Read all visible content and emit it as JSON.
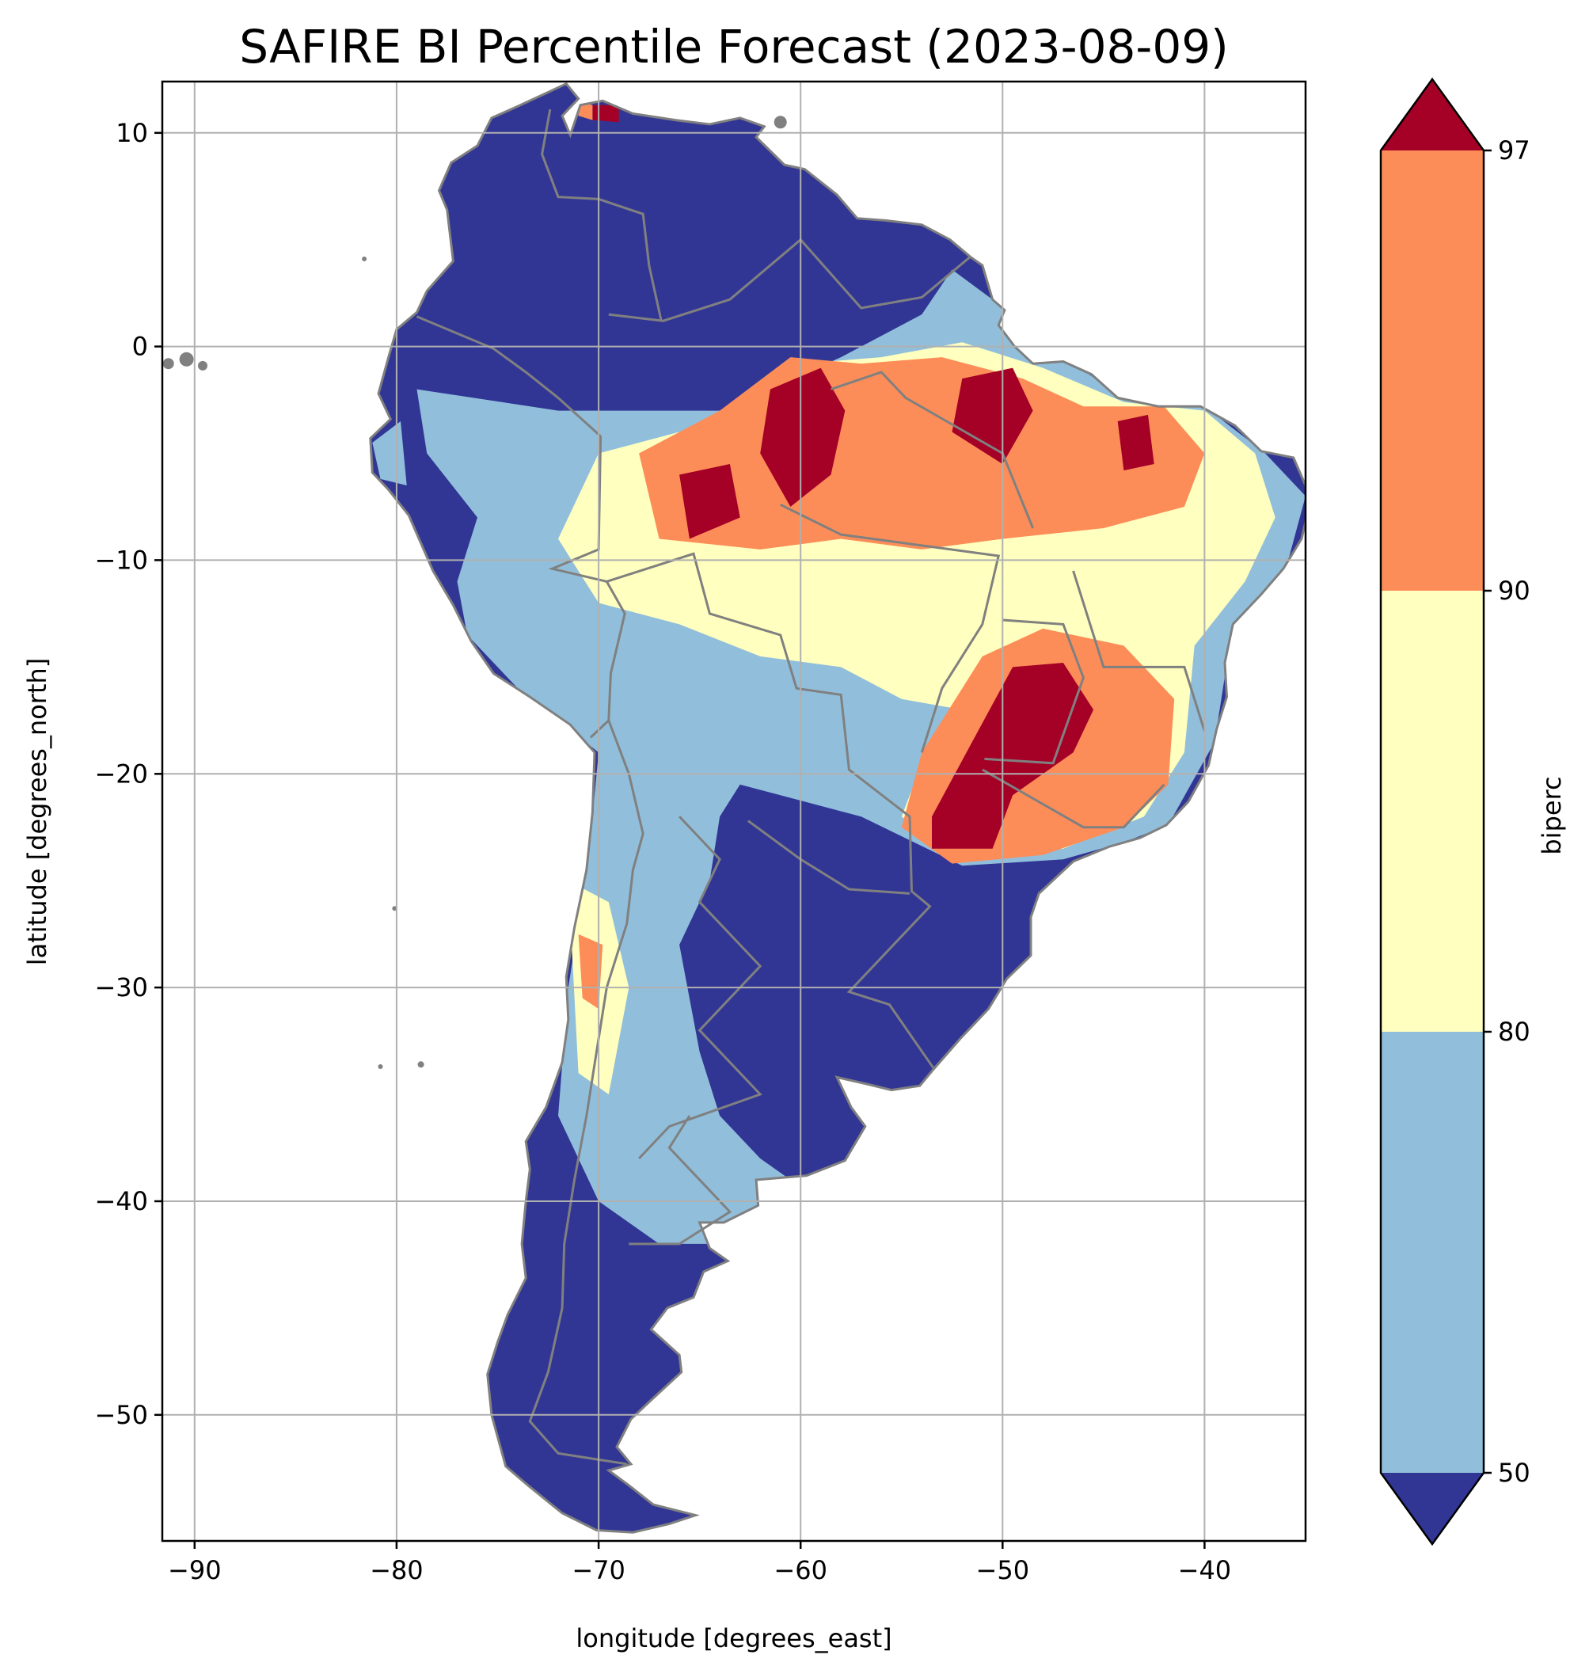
{
  "title": "SAFIRE BI Percentile Forecast (2023-08-09)",
  "xlabel": "longitude [degrees_east]",
  "ylabel": "latitude [degrees_north]",
  "xlim": [
    -91.6,
    -35.0
  ],
  "ylim": [
    -55.9,
    12.4
  ],
  "x_ticks": [
    {
      "value": -90,
      "label": "−90"
    },
    {
      "value": -80,
      "label": "−80"
    },
    {
      "value": -70,
      "label": "−70"
    },
    {
      "value": -60,
      "label": "−60"
    },
    {
      "value": -50,
      "label": "−50"
    },
    {
      "value": -40,
      "label": "−40"
    }
  ],
  "y_ticks": [
    {
      "value": 10,
      "label": "10"
    },
    {
      "value": 0,
      "label": "0"
    },
    {
      "value": -10,
      "label": "−10"
    },
    {
      "value": -20,
      "label": "−20"
    },
    {
      "value": -30,
      "label": "−30"
    },
    {
      "value": -40,
      "label": "−40"
    },
    {
      "value": -50,
      "label": "−50"
    }
  ],
  "grid": true,
  "colorbar": {
    "label": "biperc",
    "ticks": [
      "50",
      "80",
      "90",
      "97"
    ],
    "extend": "both",
    "levels": [
      {
        "range": "<50",
        "color": "#313695"
      },
      {
        "range": "50-80",
        "color": "#91bfdb"
      },
      {
        "range": "80-90",
        "color": "#ffffbf"
      },
      {
        "range": "90-97",
        "color": "#fc8d59"
      },
      {
        "range": ">97",
        "color": "#a50026"
      }
    ]
  },
  "colors": {
    "boundary": "#808080",
    "grid": "#b0b0b0",
    "below50": "#313695",
    "p50_80": "#91bfdb",
    "p80_90": "#ffffbf",
    "p90_97": "#fc8d59",
    "above97": "#a50026"
  }
}
